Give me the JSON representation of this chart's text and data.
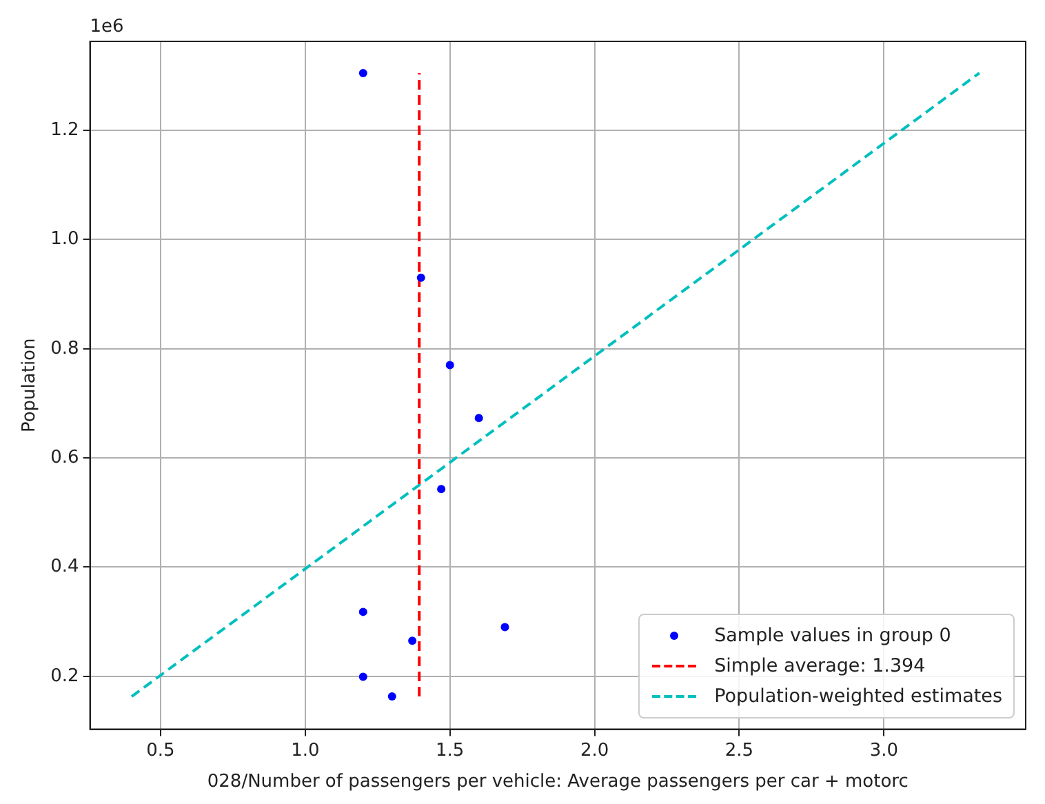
{
  "chart_data": {
    "type": "scatter",
    "xlabel": "028/Number of passengers per vehicle: Average passengers per car + motorc",
    "ylabel": "Population",
    "annotations": [
      "1e6"
    ],
    "xlim": [
      0.256,
      3.49
    ],
    "xticks": [
      0.5,
      {
        "value": 1,
        "label": "1.0"
      },
      1.5,
      {
        "value": 2,
        "label": "2.0"
      },
      2.5,
      {
        "value": 3,
        "label": "3.0"
      }
    ],
    "ylim": [
      0.103,
      1.363
    ],
    "yticks": [
      0.2,
      0.4,
      0.6,
      0.8,
      {
        "value": 1,
        "label": "1.0"
      },
      1.2
    ],
    "grid": true,
    "legend": "bottom right",
    "series": [
      {
        "name": "Sample values in group 0",
        "color": "#0000ff",
        "marker": "circle",
        "x": [
          1.2,
          1.4,
          1.5,
          1.6,
          1.47,
          1.2,
          1.37,
          1.69,
          1.2,
          1.3
        ],
        "values": [
          1.305,
          0.93,
          0.77,
          0.673,
          0.543,
          0.318,
          0.265,
          0.29,
          0.199,
          0.163
        ]
      },
      {
        "name": "Simple average: 1.394",
        "type": "line",
        "color": "#ff0000",
        "line_style": "dashed",
        "marker": "none",
        "x": [
          1.394,
          1.394
        ],
        "values": [
          0.163,
          1.305
        ]
      },
      {
        "name": "Population-weighted estimates",
        "type": "line",
        "color": "#00bfbf",
        "line_style": "dashed",
        "marker": "none",
        "x": [
          0.4,
          3.33
        ],
        "values": [
          0.163,
          1.305
        ]
      }
    ]
  }
}
